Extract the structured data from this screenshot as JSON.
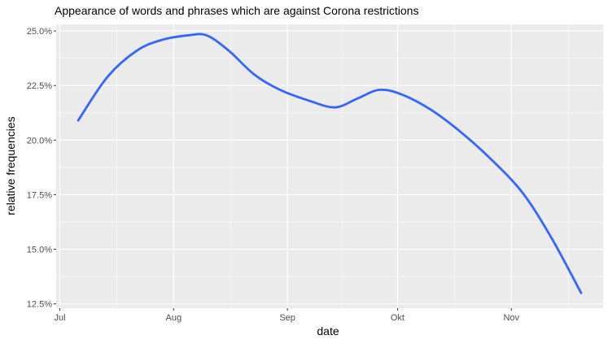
{
  "chart_data": {
    "type": "line",
    "title": "Appearance of words and phrases which are against Corona restrictions",
    "xlabel": "date",
    "ylabel": "relative frequencies",
    "x_ticks": [
      "Jul",
      "Aug",
      "Sep",
      "Okt",
      "Nov"
    ],
    "x_tick_dates": [
      "2020-07-01",
      "2020-08-01",
      "2020-09-01",
      "2020-10-01",
      "2020-11-01"
    ],
    "y_ticks": [
      "12.5%",
      "15.0%",
      "17.5%",
      "20.0%",
      "22.5%",
      "25.0%"
    ],
    "y_tick_values": [
      12.5,
      15.0,
      17.5,
      20.0,
      22.5,
      25.0
    ],
    "xlim": [
      "2020-06-30",
      "2020-11-26"
    ],
    "ylim": [
      12.3,
      25.3
    ],
    "grid": true,
    "background": "#ebebeb",
    "grid_color": "#ffffff",
    "series": [
      {
        "color": "#3366ff",
        "x": [
          "2020-07-06",
          "2020-07-14",
          "2020-07-22",
          "2020-07-29",
          "2020-08-05",
          "2020-08-10",
          "2020-08-16",
          "2020-08-23",
          "2020-08-30",
          "2020-09-07",
          "2020-09-14",
          "2020-09-20",
          "2020-09-26",
          "2020-10-02",
          "2020-10-10",
          "2020-10-18",
          "2020-10-26",
          "2020-11-04",
          "2020-11-12",
          "2020-11-20"
        ],
        "values": [
          20.9,
          22.9,
          24.1,
          24.6,
          24.8,
          24.8,
          24.1,
          23.0,
          22.3,
          21.8,
          21.5,
          21.9,
          22.3,
          22.1,
          21.4,
          20.4,
          19.2,
          17.6,
          15.5,
          13.0
        ]
      }
    ]
  }
}
